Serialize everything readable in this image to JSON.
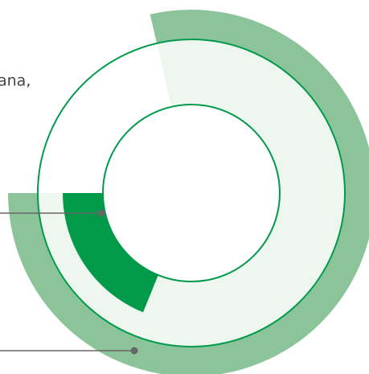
{
  "label_fragment": "ana,"
}
